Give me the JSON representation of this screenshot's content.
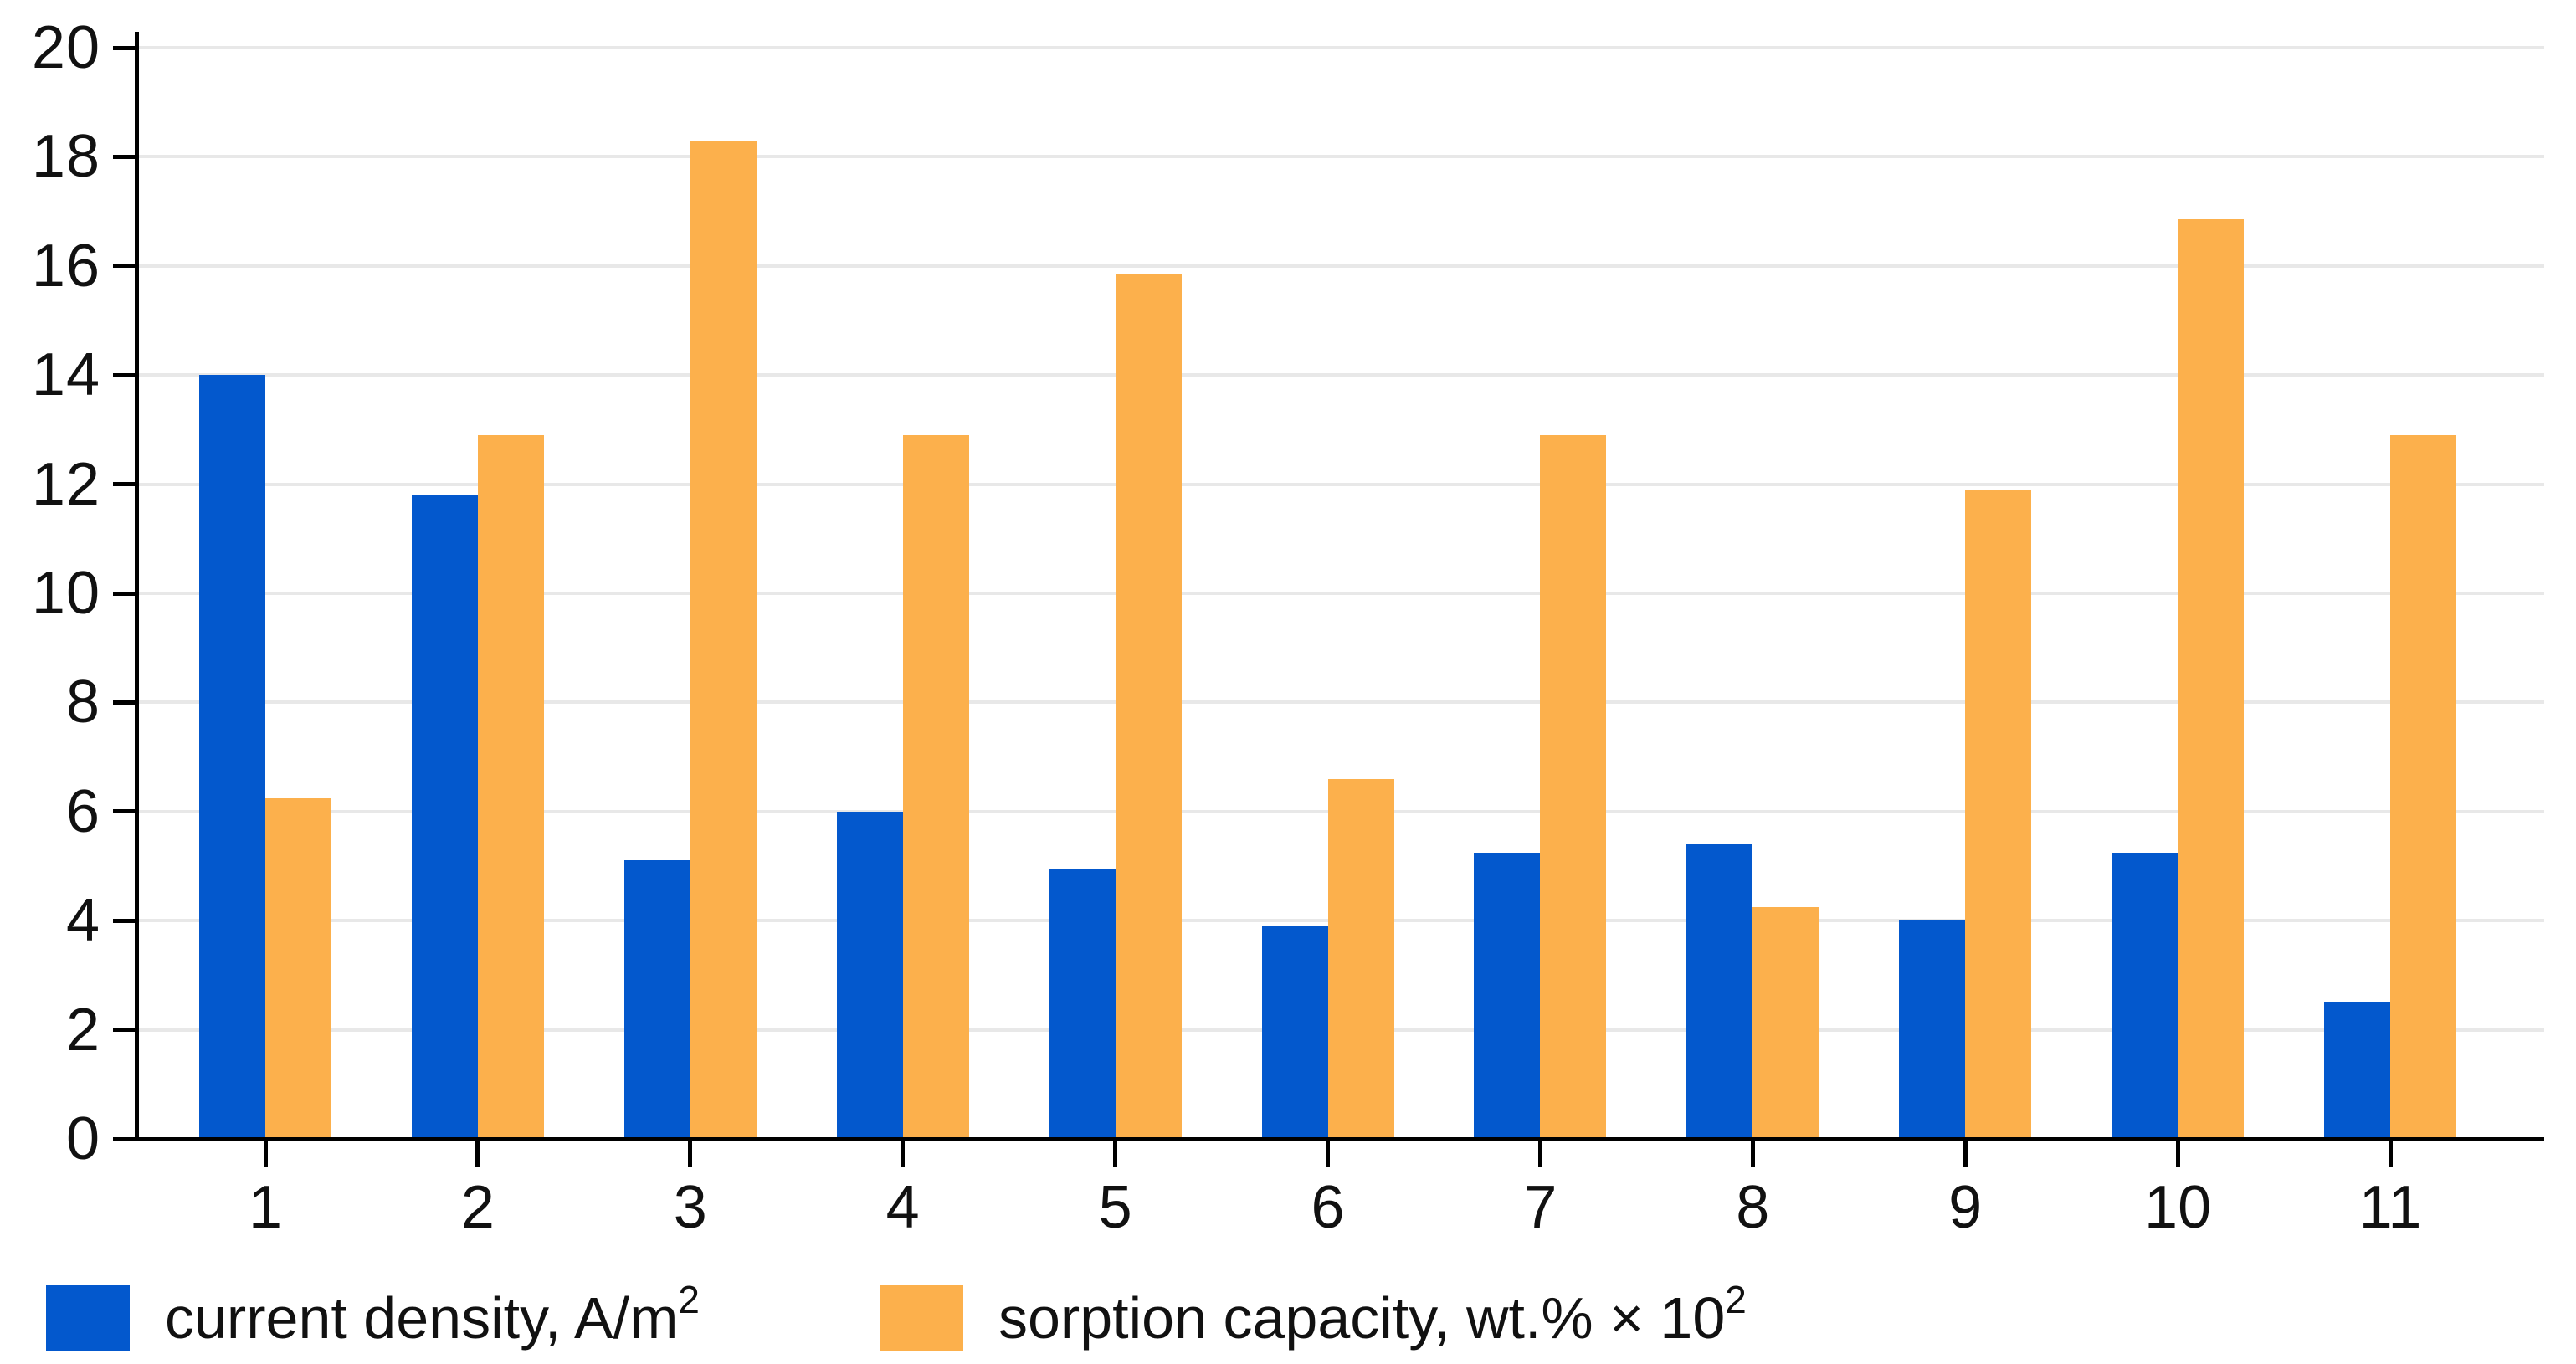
{
  "chart_data": {
    "type": "bar",
    "title": "",
    "xlabel": "",
    "ylabel": "",
    "categories": [
      "1",
      "2",
      "3",
      "4",
      "5",
      "6",
      "7",
      "8",
      "9",
      "10",
      "11"
    ],
    "series": [
      {
        "key": "current-density",
        "name": "current density, A/m²",
        "label_base": "current density, A/m",
        "label_sup": "2",
        "color": "#0358cd",
        "values": [
          14,
          11.8,
          5.1,
          6,
          4.95,
          3.9,
          5.25,
          5.4,
          4,
          5.25,
          2.5
        ]
      },
      {
        "key": "sorption-capacity",
        "name": "sorption capacity, wt.% × 10²",
        "label_base": "sorption capacity, wt.% × 10",
        "label_sup": "2",
        "color": "#fcb04c",
        "values": [
          6.25,
          12.9,
          18.3,
          12.9,
          15.85,
          6.6,
          12.9,
          4.25,
          11.9,
          16.85,
          12.9
        ]
      }
    ],
    "ylim": [
      0,
      20
    ],
    "yticks": [
      0,
      2,
      4,
      6,
      8,
      10,
      12,
      14,
      16,
      18,
      20
    ],
    "grid": true,
    "grid_color": "#e8e8e8",
    "axis_color": "#000000",
    "text_color": "#111111",
    "background_color": "#ffffff",
    "legend_position": "bottom-left"
  }
}
